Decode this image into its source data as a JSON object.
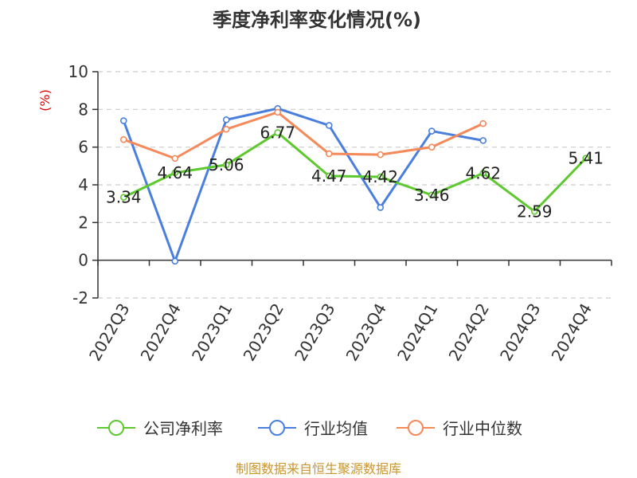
{
  "chart_data": {
    "type": "line",
    "title": "季度净利率变化情况(%)",
    "ylabel": "(%)",
    "xlabel": "",
    "ylim": [
      -2,
      10
    ],
    "yticks": [
      "10",
      "8",
      "6",
      "4",
      "2",
      "0",
      "-2"
    ],
    "categories": [
      "2022Q3",
      "2022Q4",
      "2023Q1",
      "2023Q2",
      "2023Q3",
      "2023Q4",
      "2024Q1",
      "2024Q2",
      "2024Q3",
      "2024Q4"
    ],
    "grid": true,
    "legend_position": "bottom",
    "series": [
      {
        "name": "公司净利率",
        "color": "#5ec92f",
        "values": [
          3.34,
          4.64,
          5.06,
          6.77,
          4.47,
          4.42,
          3.46,
          4.62,
          2.59,
          5.41
        ],
        "labels": [
          "3.34",
          "4.64",
          "5.06",
          "6.77",
          "4.47",
          "4.42",
          "3.46",
          "4.62",
          "2.59",
          "5.41"
        ]
      },
      {
        "name": "行业均值",
        "color": "#4a7fde",
        "values": [
          7.4,
          -0.05,
          7.45,
          8.05,
          7.15,
          2.8,
          6.85,
          6.35,
          null,
          null
        ]
      },
      {
        "name": "行业中位数",
        "color": "#f5895a",
        "values": [
          6.4,
          5.4,
          6.95,
          7.85,
          5.65,
          5.6,
          6.0,
          7.25,
          null,
          null
        ]
      }
    ]
  },
  "source_text": "制图数据来自恒生聚源数据库"
}
